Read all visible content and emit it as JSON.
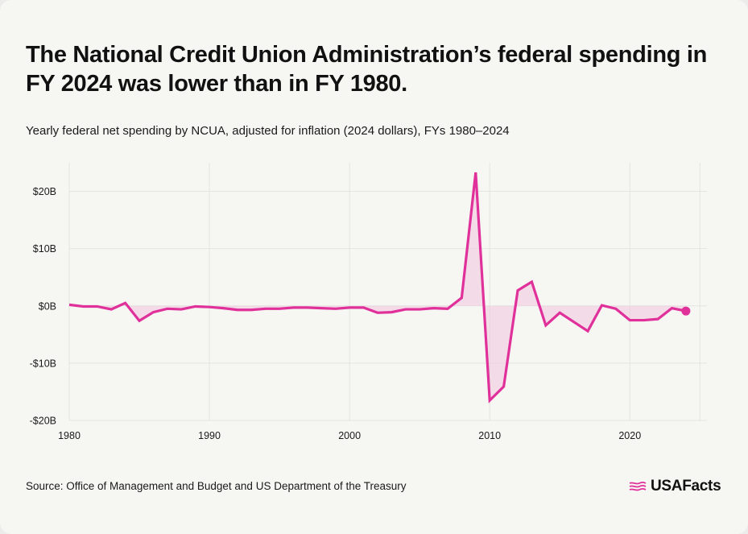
{
  "title": "The National Credit Union Administration’s federal spending in FY 2024 was lower than in FY 1980.",
  "subtitle": "Yearly federal net spending by NCUA, adjusted for inflation (2024 dollars), FYs 1980–2024",
  "source": "Source: Office of Management and Budget and US Department of the Treasury",
  "brand": "USAFacts",
  "colors": {
    "line": "#e0309a",
    "fill": "#f1c6de",
    "grid": "#e4e4e0",
    "background": "#f6f6f3"
  },
  "chart_data": {
    "type": "line",
    "title": "The National Credit Union Administration’s federal spending in FY 2024 was lower than in FY 1980.",
    "subtitle": "Yearly federal net spending by NCUA, adjusted for inflation (2024 dollars), FYs 1980–2024",
    "xlabel": "",
    "ylabel": "",
    "xlim": [
      1980,
      2025.5
    ],
    "ylim": [
      -20,
      25
    ],
    "x_ticks": [
      1980,
      1990,
      2000,
      2010,
      2020
    ],
    "x_tick_labels": [
      "1980",
      "1990",
      "2000",
      "2010",
      "2020"
    ],
    "y_ticks": [
      20,
      10,
      0,
      -10,
      -20
    ],
    "y_tick_labels": [
      "$20B",
      "$10B",
      "$0B",
      "-$10B",
      "-$20B"
    ],
    "grid": true,
    "area_fill_to_zero": true,
    "end_marker": true,
    "series": [
      {
        "x": [
          1980,
          1981,
          1982,
          1983,
          1984,
          1985,
          1986,
          1987,
          1988,
          1989,
          1990,
          1991,
          1992,
          1993,
          1994,
          1995,
          1996,
          1997,
          1998,
          1999,
          2000,
          2001,
          2002,
          2003,
          2004,
          2005,
          2006,
          2007,
          2008,
          2009,
          2010,
          2011,
          2012,
          2013,
          2014,
          2015,
          2016,
          2017,
          2018,
          2019,
          2020,
          2021,
          2022,
          2023,
          2024
        ],
        "values": [
          0.2,
          -0.1,
          -0.1,
          -0.6,
          0.5,
          -2.6,
          -1.1,
          -0.5,
          -0.6,
          -0.1,
          -0.2,
          -0.4,
          -0.7,
          -0.7,
          -0.5,
          -0.5,
          -0.3,
          -0.3,
          -0.4,
          -0.5,
          -0.3,
          -0.3,
          -1.2,
          -1.1,
          -0.6,
          -0.6,
          -0.4,
          -0.5,
          1.4,
          23.3,
          -16.5,
          -14.1,
          2.7,
          4.2,
          -3.4,
          -1.2,
          -2.8,
          -4.4,
          0.1,
          -0.5,
          -2.5,
          -2.5,
          -2.3,
          -0.4,
          -0.9
        ]
      }
    ]
  }
}
